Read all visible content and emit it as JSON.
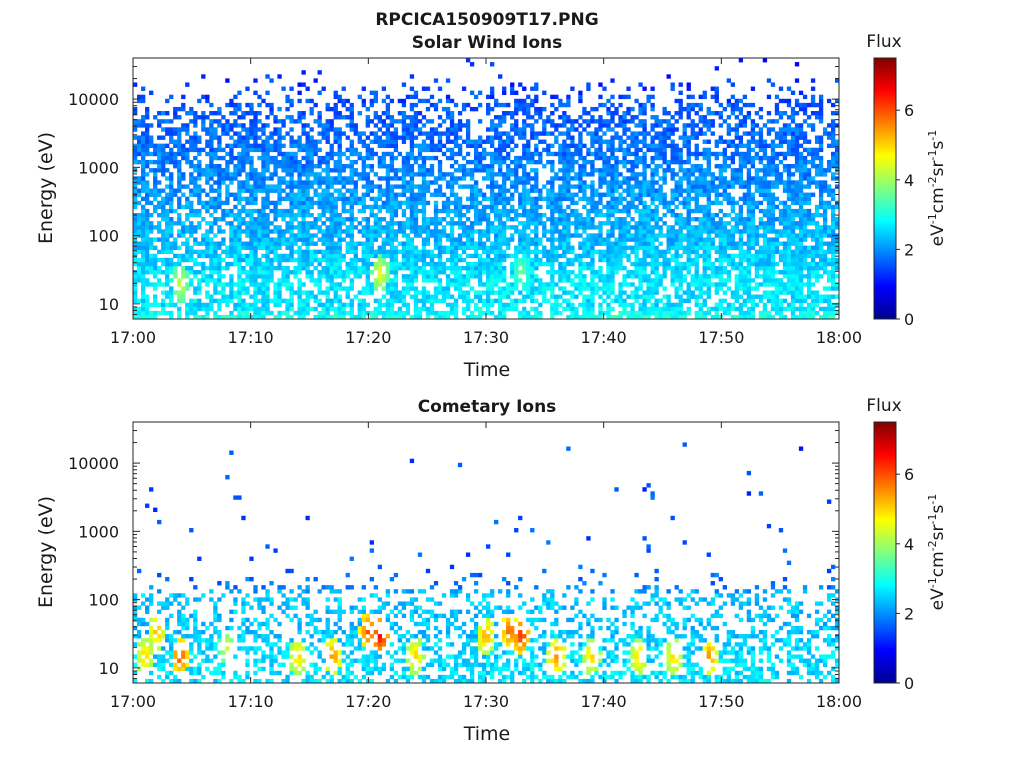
{
  "figure": {
    "title": "RPCICA150909T17.PNG"
  },
  "chart_data": [
    {
      "type": "heatmap",
      "title": "Solar Wind Ions",
      "xlabel": "Time",
      "ylabel": "Energy (eV)",
      "x_range": [
        "17:00",
        "18:00"
      ],
      "x_ticks": [
        "17:00",
        "17:10",
        "17:20",
        "17:30",
        "17:40",
        "17:50",
        "18:00"
      ],
      "y_scale": "log",
      "y_range": [
        6,
        40000
      ],
      "y_ticks": [
        10,
        100,
        1000,
        10000
      ],
      "y_tick_labels": [
        "10",
        "100",
        "1000",
        "10000"
      ],
      "colorbar": {
        "title": "Flux",
        "label": "eV-1cm-2sr-1s-1",
        "range": [
          0,
          7.5
        ],
        "ticks": [
          0,
          2,
          4,
          6
        ],
        "colormap": "jet"
      },
      "density_profile": {
        "log_energy": [
          0.78,
          1.0,
          1.3,
          1.6,
          2.0,
          2.5,
          3.0,
          3.5,
          3.9,
          4.1,
          4.4
        ],
        "occupancy": [
          0.75,
          0.6,
          0.7,
          0.8,
          0.78,
          0.7,
          0.68,
          0.6,
          0.4,
          0.15,
          0.01
        ],
        "flux_level": [
          3.0,
          2.6,
          2.7,
          2.5,
          2.3,
          2.1,
          1.9,
          1.7,
          1.6,
          1.4,
          1.2
        ]
      },
      "hotspots": [
        {
          "time": "17:04",
          "energy": 20,
          "flux": 4.3
        },
        {
          "time": "17:21",
          "energy": 28,
          "flux": 4.5
        },
        {
          "time": "17:33",
          "energy": 30,
          "flux": 3.6
        }
      ]
    },
    {
      "type": "heatmap",
      "title": "Cometary Ions",
      "xlabel": "Time",
      "ylabel": "Energy (eV)",
      "x_range": [
        "17:00",
        "18:00"
      ],
      "x_ticks": [
        "17:00",
        "17:10",
        "17:20",
        "17:30",
        "17:40",
        "17:50",
        "18:00"
      ],
      "y_scale": "log",
      "y_range": [
        6,
        40000
      ],
      "y_ticks": [
        10,
        100,
        1000,
        10000
      ],
      "y_tick_labels": [
        "10",
        "100",
        "1000",
        "10000"
      ],
      "colorbar": {
        "title": "Flux",
        "label": "eV-1cm-2sr-1s-1",
        "range": [
          0,
          7.5
        ],
        "ticks": [
          0,
          2,
          4,
          6
        ],
        "colormap": "jet"
      },
      "density_profile": {
        "log_energy": [
          0.78,
          1.0,
          1.3,
          1.6,
          1.9,
          2.05,
          2.2,
          2.5,
          3.0,
          3.5,
          4.0,
          4.5
        ],
        "occupancy": [
          0.5,
          0.45,
          0.5,
          0.4,
          0.35,
          0.3,
          0.08,
          0.02,
          0.012,
          0.01,
          0.008,
          0.002
        ],
        "flux_level": [
          2.6,
          2.6,
          2.5,
          2.4,
          2.4,
          2.5,
          1.8,
          1.6,
          1.5,
          1.5,
          1.4,
          1.4
        ]
      },
      "hotspots": [
        {
          "time": "17:01",
          "energy": 15,
          "flux": 5.0
        },
        {
          "time": "17:02",
          "energy": 35,
          "flux": 5.2
        },
        {
          "time": "17:04",
          "energy": 15,
          "flux": 6.0
        },
        {
          "time": "17:08",
          "energy": 20,
          "flux": 4.3
        },
        {
          "time": "17:14",
          "energy": 15,
          "flux": 5.0
        },
        {
          "time": "17:17",
          "energy": 15,
          "flux": 5.5
        },
        {
          "time": "17:20",
          "energy": 35,
          "flux": 6.0
        },
        {
          "time": "17:21",
          "energy": 30,
          "flux": 6.5
        },
        {
          "time": "17:24",
          "energy": 15,
          "flux": 5.0
        },
        {
          "time": "17:30",
          "energy": 30,
          "flux": 5.3
        },
        {
          "time": "17:32",
          "energy": 35,
          "flux": 5.8
        },
        {
          "time": "17:33",
          "energy": 30,
          "flux": 6.2
        },
        {
          "time": "17:36",
          "energy": 15,
          "flux": 5.5
        },
        {
          "time": "17:39",
          "energy": 15,
          "flux": 5.0
        },
        {
          "time": "17:43",
          "energy": 15,
          "flux": 5.0
        },
        {
          "time": "17:46",
          "energy": 15,
          "flux": 5.0
        },
        {
          "time": "17:49",
          "energy": 15,
          "flux": 5.5
        }
      ]
    }
  ]
}
